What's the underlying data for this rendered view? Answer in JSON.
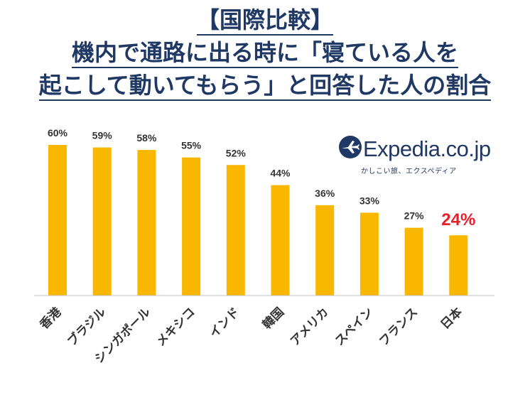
{
  "title": {
    "line1": "【国際比較】",
    "line2": "機内で通路に出る時に「寝ている人を",
    "line3": "起こして動いてもらう」と回答した人の割合"
  },
  "logo": {
    "name": "Expedia.co.jp",
    "tagline": "かしこい旅、エクスペディア",
    "icon": "airplane-globe-icon"
  },
  "colors": {
    "bar": "#F9B700",
    "highlight_label": "#E8202A",
    "label": "#333333",
    "title": "#1F3864"
  },
  "chart_data": {
    "type": "bar",
    "categories": [
      "香港",
      "ブラジル",
      "シンガポール",
      "メキシコ",
      "インド",
      "韓国",
      "アメリカ",
      "スペイン",
      "フランス",
      "日本"
    ],
    "values": [
      60,
      59,
      58,
      55,
      52,
      44,
      36,
      33,
      27,
      24
    ],
    "value_labels": [
      "60%",
      "59%",
      "58%",
      "55%",
      "52%",
      "44%",
      "36%",
      "33%",
      "27%",
      "24%"
    ],
    "highlight_index": 9,
    "ylim": [
      0,
      60
    ],
    "grid": false,
    "legend": "none"
  }
}
